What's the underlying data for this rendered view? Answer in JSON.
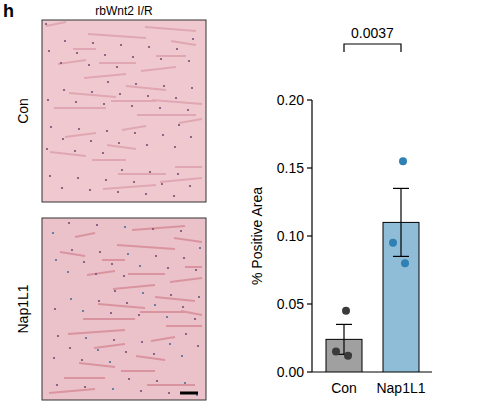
{
  "panel": {
    "label": "h",
    "title": "rbWnt2 I/R",
    "image_labels": [
      "Con",
      "Nap1L1"
    ]
  },
  "chart_data": {
    "type": "bar",
    "y_label": "% Positive Area",
    "categories": [
      "Con",
      "Nap1L1"
    ],
    "values": [
      0.024,
      0.11
    ],
    "errors": [
      0.011,
      0.025
    ],
    "points": [
      [
        0.045,
        0.015,
        0.012
      ],
      [
        0.155,
        0.095,
        0.08
      ]
    ],
    "colors": [
      "#a0a0a0",
      "#8fbcd6"
    ],
    "point_colors": [
      "#3a3a3a",
      "#2f80b3"
    ],
    "ylim": [
      0,
      0.2
    ],
    "yticks": [
      {
        "value": 0,
        "label": "0.00"
      },
      0.05,
      {
        "value": 0.1,
        "label": "0.10"
      },
      0.15,
      {
        "value": 0.2,
        "label": "0.20"
      }
    ],
    "grid": false,
    "annotations": [
      {
        "text": "0.0037",
        "from": "Con",
        "to": "Nap1L1"
      }
    ]
  }
}
